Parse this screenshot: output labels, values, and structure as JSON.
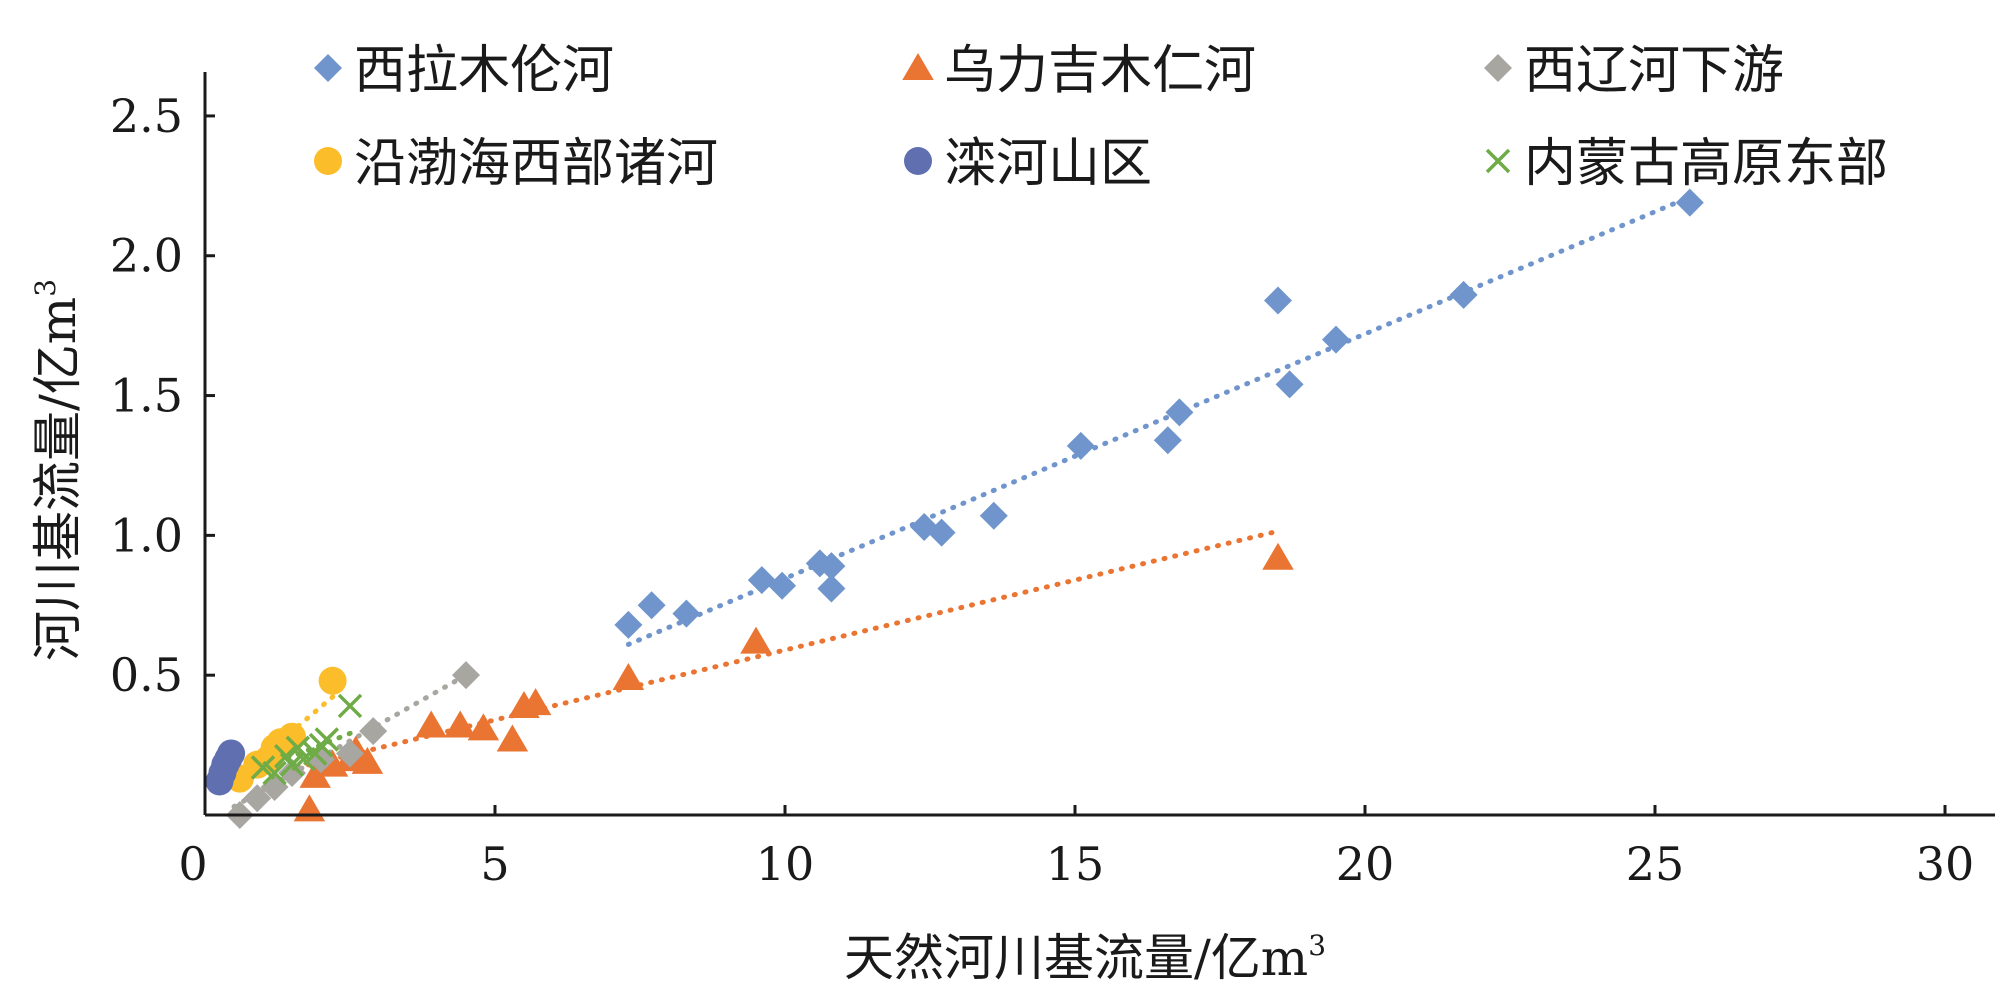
{
  "chart_data": {
    "type": "scatter",
    "title": "",
    "xlabel": "天然河川基流量/亿m",
    "xlabel_sup": "3",
    "ylabel": "河川基流量/亿m",
    "ylabel_sup": "3",
    "xlim": [
      0,
      30
    ],
    "ylim": [
      0,
      2.7
    ],
    "xticks": [
      0,
      5,
      10,
      15,
      20,
      25,
      30
    ],
    "xtick_labels": [
      "0",
      "5",
      "10",
      "15",
      "20",
      "25",
      "30"
    ],
    "yticks": [
      0.5,
      1.0,
      1.5,
      2.0,
      2.5
    ],
    "ytick_labels": [
      "0.5",
      "1.0",
      "1.5",
      "2.0",
      "2.5"
    ],
    "grid": false,
    "legend_position": "top",
    "series": [
      {
        "name": "西拉木伦河",
        "marker": "diamond",
        "color": "#6f95cc",
        "points": [
          [
            7.3,
            0.68
          ],
          [
            7.7,
            0.75
          ],
          [
            8.3,
            0.72
          ],
          [
            9.6,
            0.84
          ],
          [
            9.95,
            0.82
          ],
          [
            10.6,
            0.9
          ],
          [
            10.8,
            0.89
          ],
          [
            10.8,
            0.81
          ],
          [
            12.4,
            1.03
          ],
          [
            12.7,
            1.01
          ],
          [
            13.6,
            1.07
          ],
          [
            15.1,
            1.32
          ],
          [
            16.6,
            1.34
          ],
          [
            16.8,
            1.44
          ],
          [
            18.5,
            1.84
          ],
          [
            18.7,
            1.54
          ],
          [
            19.5,
            1.7
          ],
          [
            21.7,
            1.86
          ],
          [
            25.6,
            2.19
          ]
        ],
        "trend": [
          [
            7.3,
            0.61
          ],
          [
            25.6,
            2.21
          ]
        ]
      },
      {
        "name": "乌力吉木仁河",
        "marker": "triangle",
        "color": "#ea7432",
        "points": [
          [
            1.8,
            0.02
          ],
          [
            1.9,
            0.14
          ],
          [
            2.2,
            0.18
          ],
          [
            2.5,
            0.2
          ],
          [
            2.6,
            0.23
          ],
          [
            2.8,
            0.19
          ],
          [
            3.9,
            0.32
          ],
          [
            4.4,
            0.32
          ],
          [
            4.8,
            0.31
          ],
          [
            5.3,
            0.27
          ],
          [
            5.5,
            0.39
          ],
          [
            5.7,
            0.4
          ],
          [
            7.3,
            0.49
          ],
          [
            9.5,
            0.62
          ],
          [
            18.5,
            0.92
          ]
        ],
        "trend": [
          [
            1.6,
            0.17
          ],
          [
            18.4,
            1.01
          ]
        ]
      },
      {
        "name": "西辽河下游",
        "marker": "diamond",
        "color": "#a8a6a1",
        "points": [
          [
            0.6,
            0.0
          ],
          [
            0.9,
            0.06
          ],
          [
            1.2,
            0.1
          ],
          [
            1.5,
            0.15
          ],
          [
            2.0,
            0.2
          ],
          [
            2.5,
            0.22
          ],
          [
            2.9,
            0.3
          ],
          [
            4.5,
            0.5
          ]
        ],
        "trend": [
          [
            0.5,
            0.03
          ],
          [
            4.5,
            0.5
          ]
        ]
      },
      {
        "name": "沿渤海西部诸河",
        "marker": "circle",
        "color": "#fbbd2a",
        "points": [
          [
            0.6,
            0.13
          ],
          [
            0.9,
            0.18
          ],
          [
            1.1,
            0.2
          ],
          [
            1.2,
            0.24
          ],
          [
            1.3,
            0.26
          ],
          [
            1.5,
            0.28
          ],
          [
            2.2,
            0.48
          ]
        ],
        "trend": [
          [
            0.6,
            0.14
          ],
          [
            2.3,
            0.44
          ]
        ]
      },
      {
        "name": "滦河山区",
        "marker": "circle",
        "color": "#5f6fb0",
        "points": [
          [
            0.25,
            0.12
          ],
          [
            0.3,
            0.15
          ],
          [
            0.35,
            0.18
          ],
          [
            0.4,
            0.2
          ],
          [
            0.45,
            0.22
          ]
        ],
        "trend": [
          [
            0.2,
            0.12
          ],
          [
            0.5,
            0.22
          ]
        ]
      },
      {
        "name": "内蒙古高原东部",
        "marker": "x",
        "color": "#6fab46",
        "points": [
          [
            1.0,
            0.17
          ],
          [
            1.2,
            0.15
          ],
          [
            1.4,
            0.21
          ],
          [
            1.5,
            0.18
          ],
          [
            1.6,
            0.24
          ],
          [
            1.7,
            0.2
          ],
          [
            1.9,
            0.22
          ],
          [
            2.0,
            0.25
          ],
          [
            2.1,
            0.27
          ],
          [
            2.5,
            0.39
          ]
        ],
        "trend": [
          [
            0.9,
            0.16
          ],
          [
            2.6,
            0.3
          ]
        ]
      }
    ]
  }
}
